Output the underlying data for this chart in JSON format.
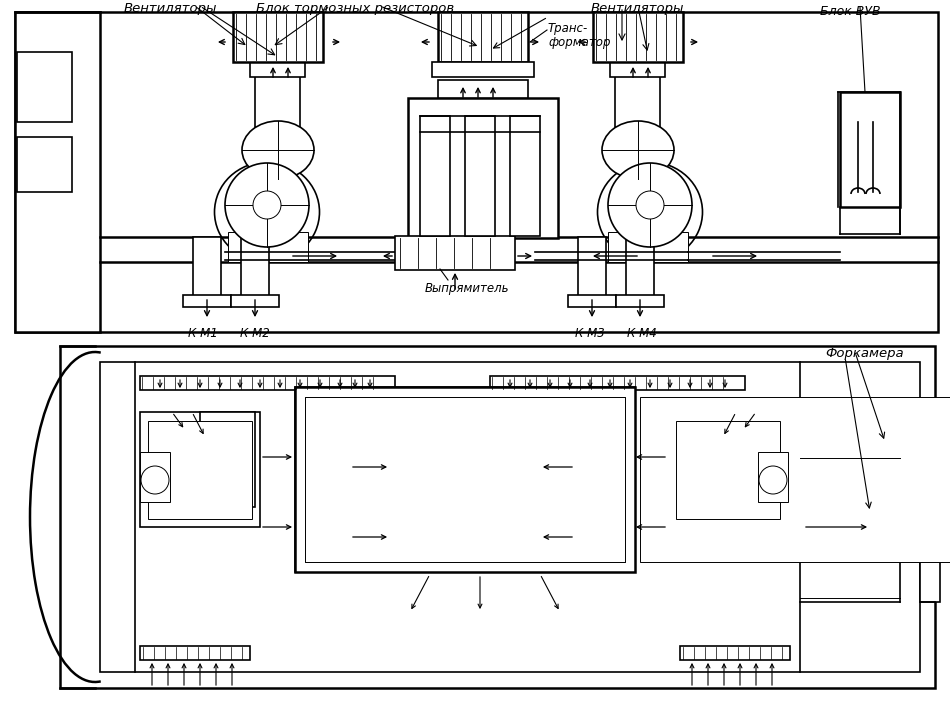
{
  "bg_color": "#ffffff",
  "labels": {
    "ventilyatory_left": "Вентиляторы",
    "blok_tormoz": "Блок тормозных резисторов",
    "trans_formator": "Транс-\nформатор",
    "ventilyatory_right": "Вентиляторы",
    "blok_vuv": "Блок ВУВ",
    "km1": "К М1",
    "km2": "К М2",
    "vypryamitel": "Выпрямитель",
    "km3": "К М3",
    "km4": "К М4",
    "forkamera": "Форкамера"
  },
  "figsize": [
    9.5,
    7.02
  ],
  "dpi": 100
}
